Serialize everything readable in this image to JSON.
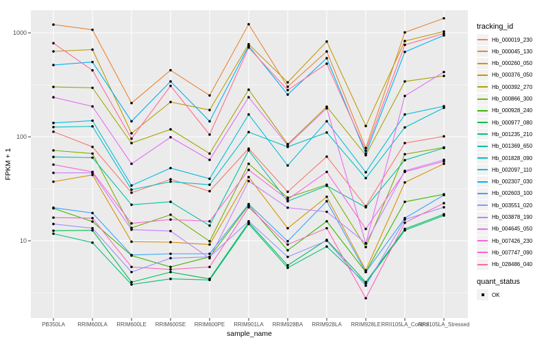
{
  "figure": {
    "background": "#FFFFFF",
    "panel_background": "#EBEBEB",
    "grid_color": "#FFFFFF",
    "tick_color": "#333333",
    "tick_label_color": "#4D4D4D",
    "point_color": "#000000"
  },
  "chart_data": {
    "type": "line",
    "title": "",
    "xlabel": "sample_name",
    "ylabel": "FPKM + 1",
    "y_scale": "log10",
    "y_ticks": [
      10,
      100,
      1000
    ],
    "y_tick_labels": [
      "10",
      "100",
      "1000"
    ],
    "y_minor_ticks": [
      3.162,
      31.62,
      316.2
    ],
    "ylim": [
      1.8,
      1675
    ],
    "grid": "on",
    "legend_position": "right",
    "categories": [
      "PB350LA",
      "RRIM600LA",
      "RRIM600LE",
      "RRIM600SE",
      "RRIM600PE",
      "RRIM901LA",
      "RRIM928BA",
      "RRIM928LA",
      "RRIM928LE",
      "RRII105LA_Control",
      "RRII105LA_Stressed"
    ],
    "series": [
      {
        "name": "Hb_000019_230",
        "color": "#F8766D",
        "values": [
          112,
          80,
          29,
          39,
          30,
          77,
          29.6,
          64.5,
          21.5,
          87,
          101
        ]
      },
      {
        "name": "Hb_000045_130",
        "color": "#EA8331",
        "values": [
          1200,
          1070,
          211,
          437,
          250,
          1210,
          303,
          662,
          78,
          1010,
          1380
        ]
      },
      {
        "name": "Hb_000260_050",
        "color": "#D89000",
        "values": [
          37,
          43,
          9.8,
          9.7,
          9.2,
          41,
          13.2,
          26.5,
          5.2,
          36.4,
          55
        ]
      },
      {
        "name": "Hb_000376_050",
        "color": "#C09B00",
        "values": [
          663,
          690,
          108,
          216,
          181,
          777,
          334,
          825,
          127,
          834,
          1030
        ]
      },
      {
        "name": "Hb_000392_270",
        "color": "#A3A500",
        "values": [
          302,
          296,
          87,
          118,
          69,
          284,
          85,
          195,
          66.5,
          341,
          385
        ]
      },
      {
        "name": "Hb_000866_300",
        "color": "#7CAE00",
        "values": [
          74,
          69,
          13.3,
          17.8,
          9.9,
          55,
          26,
          34.6,
          8.7,
          68,
          79
        ]
      },
      {
        "name": "Hb_000928_240",
        "color": "#39B600",
        "values": [
          20.5,
          15.3,
          7.2,
          5.6,
          7.0,
          22,
          8.1,
          15.4,
          5.0,
          23.7,
          28
        ]
      },
      {
        "name": "Hb_000977_080",
        "color": "#00BB4E",
        "values": [
          12.5,
          12.6,
          4.0,
          5.0,
          4.3,
          15,
          5.8,
          10.2,
          4.0,
          13,
          18
        ]
      },
      {
        "name": "Hb_001235_210",
        "color": "#00BF7D",
        "values": [
          11.7,
          9.6,
          3.8,
          4.3,
          4.2,
          14.5,
          5.5,
          8.8,
          3.9,
          12.6,
          17.5
        ]
      },
      {
        "name": "Hb_001369_650",
        "color": "#00C1A3",
        "values": [
          64,
          63,
          22.2,
          23.7,
          14,
          74,
          24,
          33.8,
          21,
          59.6,
          78
        ]
      },
      {
        "name": "Hb_001828_090",
        "color": "#00BFC4",
        "values": [
          124,
          126,
          31,
          37,
          34.6,
          111,
          80,
          110,
          40,
          123,
          190
        ]
      },
      {
        "name": "Hb_002097_110",
        "color": "#00BAE0",
        "values": [
          136,
          143,
          34,
          50,
          39.5,
          164,
          53,
          141,
          45.6,
          164,
          197
        ]
      },
      {
        "name": "Hb_002307_030",
        "color": "#00B0F6",
        "values": [
          490,
          524,
          141,
          341,
          141,
          747,
          255,
          570,
          69,
          655,
          945
        ]
      },
      {
        "name": "Hb_002603_100",
        "color": "#35A2FF",
        "values": [
          20.8,
          18.5,
          7.3,
          7.5,
          7.5,
          22.5,
          9.9,
          24,
          5.0,
          16.5,
          27.5
        ]
      },
      {
        "name": "Hb_003551_020",
        "color": "#9590FF",
        "values": [
          14.5,
          13.2,
          5.0,
          6.8,
          7.0,
          15.4,
          7.0,
          10.0,
          3.7,
          16,
          21
        ]
      },
      {
        "name": "Hb_003878_190",
        "color": "#C77CFF",
        "values": [
          45,
          45,
          12.8,
          12.4,
          6.8,
          37.5,
          20.8,
          19,
          9.5,
          47,
          60
        ]
      },
      {
        "name": "Hb_004645_050",
        "color": "#E76BF3",
        "values": [
          240,
          196,
          55,
          99,
          60,
          240,
          83,
          188,
          9.4,
          247,
          420
        ]
      },
      {
        "name": "Hb_007426_230",
        "color": "#FA62DB",
        "values": [
          54,
          46,
          14.7,
          16,
          15.4,
          48,
          25,
          46,
          13,
          46,
          58
        ]
      },
      {
        "name": "Hb_007747_090",
        "color": "#FF62BC",
        "values": [
          16.7,
          16.5,
          5.6,
          5.3,
          5.6,
          21,
          9.2,
          13.2,
          2.8,
          14.9,
          23
        ]
      },
      {
        "name": "Hb_028486_040",
        "color": "#FF6A98",
        "values": [
          795,
          436,
          96,
          309,
          105,
          722,
          281,
          505,
          73.5,
          766,
          985
        ]
      }
    ],
    "legend": {
      "color_title": "tracking_id",
      "shape_title": "quant_status",
      "shape_label": "OK"
    }
  }
}
